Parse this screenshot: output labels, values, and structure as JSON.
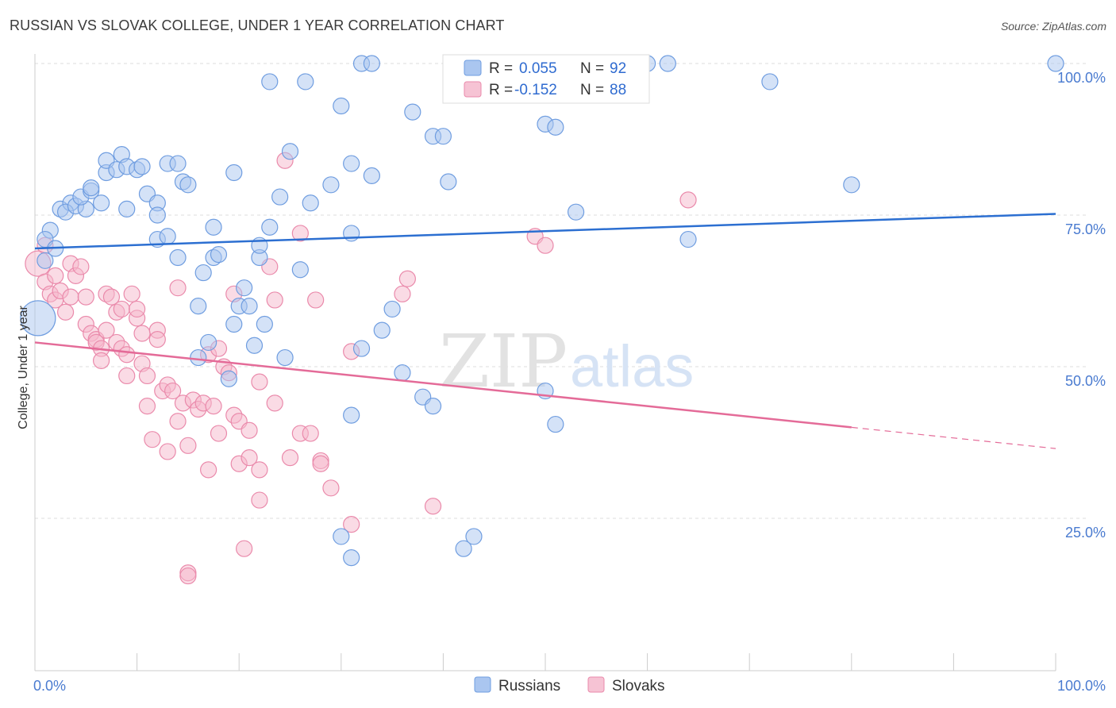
{
  "title": "RUSSIAN VS SLOVAK COLLEGE, UNDER 1 YEAR CORRELATION CHART",
  "source": "Source: ZipAtlas.com",
  "watermark": {
    "zip": "ZIP",
    "atlas": "atlas"
  },
  "colors": {
    "blue_fill": "#aac6f0",
    "blue_stroke": "#6f9de0",
    "blue_line": "#2c6fd1",
    "pink_fill": "#f6b8cc",
    "pink_stroke": "#ea8aab",
    "pink_line": "#e46b98",
    "tick_text": "#4a7bd0",
    "grid": "#dddddd"
  },
  "legend": {
    "r_label": "R =",
    "n_label": "N =",
    "russians": {
      "r": "0.055",
      "n": "92"
    },
    "slovaks": {
      "r": "-0.152",
      "n": "88"
    }
  },
  "chart_data": {
    "type": "scatter",
    "xlabel": "",
    "ylabel": "College, Under 1 year",
    "xlim": [
      0,
      100
    ],
    "ylim": [
      0,
      100
    ],
    "x_tick_labels": [
      "0.0%",
      "100.0%"
    ],
    "y_ticks": [
      25,
      50,
      75,
      100
    ],
    "y_tick_labels": [
      "25.0%",
      "50.0%",
      "75.0%",
      "100.0%"
    ],
    "grid": true,
    "legend_position": "top-center",
    "series": [
      {
        "name": "Russians",
        "trend": {
          "x": [
            0,
            100
          ],
          "y": [
            69.5,
            75.2
          ],
          "solid_to": 100
        },
        "points": [
          [
            0.3,
            58,
            22
          ],
          [
            1.5,
            72.5,
            10
          ],
          [
            1,
            71,
            10
          ],
          [
            2,
            69.5,
            10
          ],
          [
            1,
            67.5,
            10
          ],
          [
            2.5,
            76,
            10
          ],
          [
            3.5,
            77,
            10
          ],
          [
            3,
            75.5,
            10
          ],
          [
            4,
            76.5,
            10
          ],
          [
            5,
            76,
            10
          ],
          [
            4.5,
            78,
            10
          ],
          [
            5.5,
            79,
            10
          ],
          [
            5.5,
            79.5,
            10
          ],
          [
            6.5,
            77,
            10
          ],
          [
            7,
            82,
            10
          ],
          [
            7,
            84,
            10
          ],
          [
            8,
            82.5,
            10
          ],
          [
            8.5,
            85,
            10
          ],
          [
            9,
            76,
            10
          ],
          [
            9,
            83,
            10
          ],
          [
            10,
            82.5,
            10
          ],
          [
            10.5,
            83,
            10
          ],
          [
            11,
            78.5,
            10
          ],
          [
            12,
            77,
            10
          ],
          [
            12,
            75,
            10
          ],
          [
            12,
            71,
            10
          ],
          [
            13,
            71.5,
            10
          ],
          [
            13,
            83.5,
            10
          ],
          [
            14,
            68,
            10
          ],
          [
            14,
            83.5,
            10
          ],
          [
            14.5,
            80.5,
            10
          ],
          [
            15,
            80,
            10
          ],
          [
            16,
            60,
            10
          ],
          [
            16.5,
            65.5,
            10
          ],
          [
            17,
            54,
            10
          ],
          [
            16,
            51.5,
            10
          ],
          [
            17.5,
            73,
            10
          ],
          [
            17.5,
            68,
            10
          ],
          [
            18,
            68.5,
            10
          ],
          [
            19,
            48,
            10
          ],
          [
            19.5,
            57,
            10
          ],
          [
            19.5,
            82,
            10
          ],
          [
            20,
            60,
            10
          ],
          [
            20.5,
            63,
            10
          ],
          [
            21,
            60,
            10
          ],
          [
            21.5,
            53.5,
            10
          ],
          [
            22,
            68,
            10
          ],
          [
            22,
            70,
            10
          ],
          [
            22.5,
            57,
            10
          ],
          [
            23,
            73,
            10
          ],
          [
            23,
            97,
            10
          ],
          [
            24,
            78,
            10
          ],
          [
            24.5,
            51.5,
            10
          ],
          [
            25,
            85.5,
            10
          ],
          [
            26,
            66,
            10
          ],
          [
            26.5,
            97,
            10
          ],
          [
            27,
            77,
            10
          ],
          [
            29,
            80,
            10
          ],
          [
            30,
            93,
            10
          ],
          [
            30,
            22,
            10
          ],
          [
            31,
            72,
            10
          ],
          [
            31,
            83.5,
            10
          ],
          [
            31,
            42,
            10
          ],
          [
            31,
            18.5,
            10
          ],
          [
            32,
            100,
            10
          ],
          [
            32,
            53,
            10
          ],
          [
            33,
            100,
            10
          ],
          [
            33,
            81.5,
            10
          ],
          [
            34,
            56,
            10
          ],
          [
            35,
            59.5,
            10
          ],
          [
            36,
            49,
            10
          ],
          [
            37,
            92,
            10
          ],
          [
            38,
            45,
            10
          ],
          [
            39,
            43.5,
            10
          ],
          [
            39,
            88,
            10
          ],
          [
            40.5,
            80.5,
            10
          ],
          [
            40,
            88,
            10
          ],
          [
            42,
            20,
            10
          ],
          [
            43,
            22,
            10
          ],
          [
            47,
            100,
            10
          ],
          [
            50,
            46,
            10
          ],
          [
            50,
            90,
            10
          ],
          [
            51,
            89.5,
            10
          ],
          [
            51,
            40.5,
            10
          ],
          [
            53,
            75.5,
            10
          ],
          [
            60,
            100,
            10
          ],
          [
            62,
            100,
            10
          ],
          [
            64,
            71,
            10
          ],
          [
            72,
            97,
            10
          ],
          [
            80,
            80,
            10
          ],
          [
            100,
            100,
            10
          ]
        ]
      },
      {
        "name": "Slovaks",
        "trend": {
          "x": [
            0,
            100
          ],
          "y": [
            54,
            36.5
          ],
          "solid_to": 80
        },
        "points": [
          [
            0.3,
            67,
            16
          ],
          [
            1,
            70,
            10
          ],
          [
            1,
            64,
            10
          ],
          [
            1.5,
            62,
            10
          ],
          [
            2,
            65,
            10
          ],
          [
            2,
            61,
            10
          ],
          [
            2.5,
            62.5,
            10
          ],
          [
            3,
            59,
            10
          ],
          [
            3.5,
            61.5,
            10
          ],
          [
            3.5,
            67,
            10
          ],
          [
            4,
            65,
            10
          ],
          [
            4.5,
            66.5,
            10
          ],
          [
            5,
            61.5,
            10
          ],
          [
            5,
            57,
            10
          ],
          [
            5.5,
            55.5,
            10
          ],
          [
            6,
            54.5,
            10
          ],
          [
            6,
            54,
            10
          ],
          [
            6.5,
            53,
            10
          ],
          [
            6.5,
            51,
            10
          ],
          [
            7,
            56,
            10
          ],
          [
            7,
            62,
            10
          ],
          [
            7.5,
            61.5,
            10
          ],
          [
            8,
            59,
            10
          ],
          [
            8,
            54,
            10
          ],
          [
            8.5,
            59.5,
            10
          ],
          [
            8.5,
            53,
            10
          ],
          [
            9,
            52,
            10
          ],
          [
            9,
            48.5,
            10
          ],
          [
            9.5,
            62,
            10
          ],
          [
            10,
            58,
            10
          ],
          [
            10,
            59.5,
            10
          ],
          [
            10.5,
            50.5,
            10
          ],
          [
            10.5,
            55.5,
            10
          ],
          [
            11,
            48.5,
            10
          ],
          [
            11,
            43.5,
            10
          ],
          [
            11.5,
            38,
            10
          ],
          [
            12,
            56,
            10
          ],
          [
            12,
            54.5,
            10
          ],
          [
            12.5,
            46,
            10
          ],
          [
            13,
            47,
            10
          ],
          [
            13,
            36,
            10
          ],
          [
            13.5,
            46,
            10
          ],
          [
            14,
            41,
            10
          ],
          [
            14,
            63,
            10
          ],
          [
            14.5,
            44,
            10
          ],
          [
            15,
            37,
            10
          ],
          [
            15,
            16,
            10
          ],
          [
            15.5,
            44.5,
            10
          ],
          [
            16,
            43,
            10
          ],
          [
            16.5,
            44,
            10
          ],
          [
            17,
            52,
            10
          ],
          [
            17,
            33,
            10
          ],
          [
            17.5,
            43.5,
            10
          ],
          [
            18,
            53,
            10
          ],
          [
            18,
            39,
            10
          ],
          [
            18.5,
            50,
            10
          ],
          [
            19,
            49,
            10
          ],
          [
            19.5,
            62,
            10
          ],
          [
            19.5,
            42,
            10
          ],
          [
            20,
            34,
            10
          ],
          [
            20,
            41,
            10
          ],
          [
            20.5,
            20,
            10
          ],
          [
            21,
            35,
            10
          ],
          [
            21,
            39.5,
            10
          ],
          [
            22,
            47.5,
            10
          ],
          [
            22,
            33,
            10
          ],
          [
            22,
            28,
            10
          ],
          [
            23,
            66.5,
            10
          ],
          [
            23.5,
            61,
            10
          ],
          [
            23.5,
            44,
            10
          ],
          [
            24.5,
            84,
            10
          ],
          [
            25,
            35,
            10
          ],
          [
            26,
            39,
            10
          ],
          [
            26,
            72,
            10
          ],
          [
            27,
            39,
            10
          ],
          [
            27.5,
            61,
            10
          ],
          [
            28,
            34.5,
            10
          ],
          [
            28,
            34,
            10
          ],
          [
            29,
            30,
            10
          ],
          [
            31,
            52.5,
            10
          ],
          [
            31,
            24,
            10
          ],
          [
            36,
            62,
            10
          ],
          [
            36.5,
            64.5,
            10
          ],
          [
            39,
            27,
            10
          ],
          [
            49,
            71.5,
            10
          ],
          [
            50,
            70,
            10
          ],
          [
            64,
            77.5,
            10
          ],
          [
            15,
            15.5,
            10
          ]
        ]
      }
    ]
  }
}
